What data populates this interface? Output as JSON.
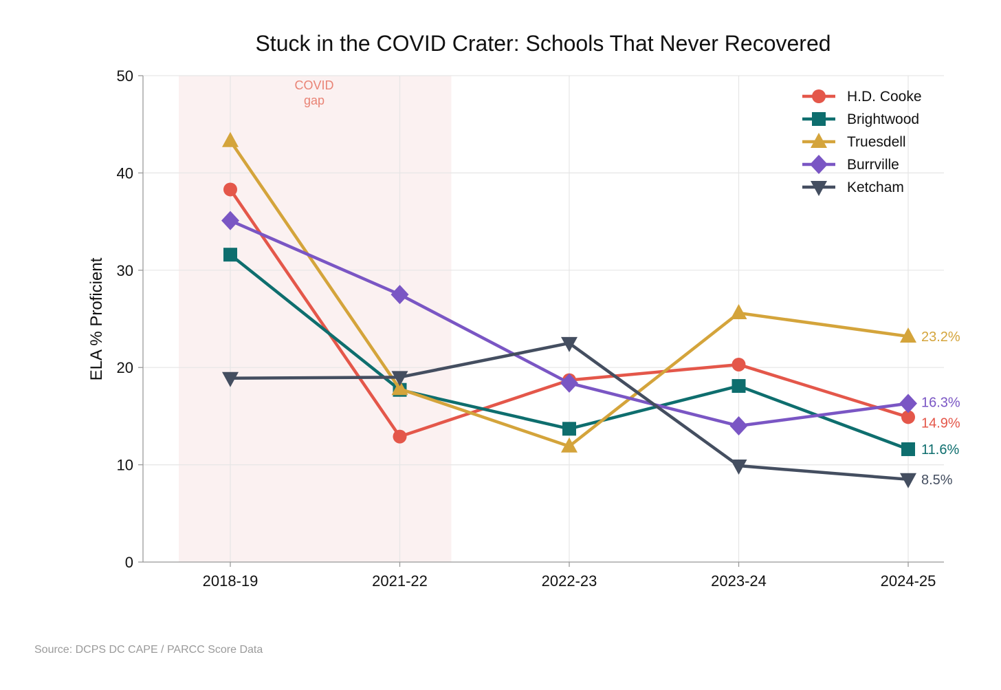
{
  "chart_data": {
    "type": "line",
    "title": "Stuck in the COVID Crater: Schools That Never Recovered",
    "xlabel": "",
    "ylabel": "ELA % Proficient",
    "categories": [
      "2018-19",
      "2021-22",
      "2022-23",
      "2023-24",
      "2024-25"
    ],
    "ylim": [
      0,
      50
    ],
    "yticks": [
      0,
      10,
      20,
      30,
      40,
      50
    ],
    "grid": true,
    "legend_position": "top-right",
    "shaded_region": {
      "from": "2018-19",
      "to": "2021-22",
      "label_line1": "COVID",
      "label_line2": "gap",
      "color": "#fbf1f1"
    },
    "series": [
      {
        "name": "H.D. Cooke",
        "color": "#e4574a",
        "marker": "circle",
        "values": [
          38.3,
          12.9,
          18.7,
          20.3,
          14.9
        ],
        "end_label": "14.9%"
      },
      {
        "name": "Brightwood",
        "color": "#0e6e6e",
        "marker": "square",
        "values": [
          31.6,
          17.7,
          13.7,
          18.1,
          11.6
        ],
        "end_label": "11.6%"
      },
      {
        "name": "Truesdell",
        "color": "#d4a43b",
        "marker": "triangle-up",
        "values": [
          43.3,
          17.8,
          11.9,
          25.6,
          23.2
        ],
        "end_label": "23.2%"
      },
      {
        "name": "Burrville",
        "color": "#7a56c4",
        "marker": "diamond",
        "values": [
          35.1,
          27.5,
          18.4,
          14.0,
          16.3
        ],
        "end_label": "16.3%"
      },
      {
        "name": "Ketcham",
        "color": "#444e60",
        "marker": "triangle-down",
        "values": [
          18.9,
          19.0,
          22.5,
          9.9,
          8.5
        ],
        "end_label": "8.5%"
      }
    ],
    "source": "Source: DCPS DC CAPE / PARCC Score Data"
  }
}
